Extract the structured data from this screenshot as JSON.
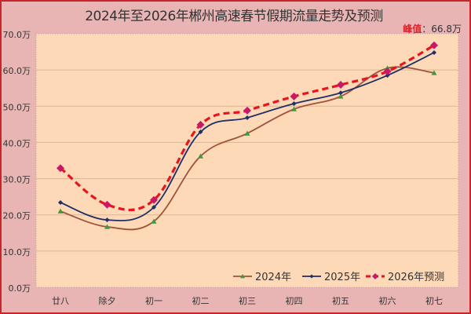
{
  "title": "2024年至2026年郴州高速春节假期流量走势及预测",
  "peak": {
    "label": "峰值",
    "sep": "：",
    "value": "66.8万"
  },
  "colors": {
    "frame": "#c8242b",
    "background": "#e8b4b4",
    "plot": "#fdd9b7",
    "s2024": "#a0523d",
    "s2025": "#1f2f66",
    "s2026": "#e8141e"
  },
  "chart_data": {
    "type": "line",
    "title": "2024年至2026年郴州高速春节假期流量走势及预测",
    "xlabel": "",
    "ylabel": "",
    "ylim": [
      0,
      70
    ],
    "yticks": [
      "0.0万",
      "10.0万",
      "20.0万",
      "30.0万",
      "40.0万",
      "50.0万",
      "60.0万",
      "70.0万"
    ],
    "categories": [
      "廿八",
      "除夕",
      "初一",
      "初二",
      "初三",
      "初四",
      "初五",
      "初六",
      "初七"
    ],
    "series": [
      {
        "name": "2024年",
        "values": [
          21.0,
          16.7,
          18.2,
          36.2,
          42.5,
          49.2,
          52.7,
          60.5,
          59.2
        ],
        "color": "#a0523d",
        "marker": "triangle",
        "style": "solid"
      },
      {
        "name": "2025年",
        "values": [
          23.4,
          18.6,
          22.1,
          42.9,
          46.8,
          50.7,
          53.7,
          58.5,
          64.8
        ],
        "color": "#1f2f66",
        "marker": "diamond",
        "style": "solid"
      },
      {
        "name": "2026年预测",
        "values": [
          32.9,
          22.8,
          24.1,
          44.9,
          48.8,
          52.7,
          55.9,
          59.6,
          66.8
        ],
        "color": "#e8141e",
        "marker": "diamond",
        "style": "dashed"
      }
    ],
    "annotation": "峰值：66.8万",
    "grid": true,
    "legend_position": "bottom-right inside"
  }
}
